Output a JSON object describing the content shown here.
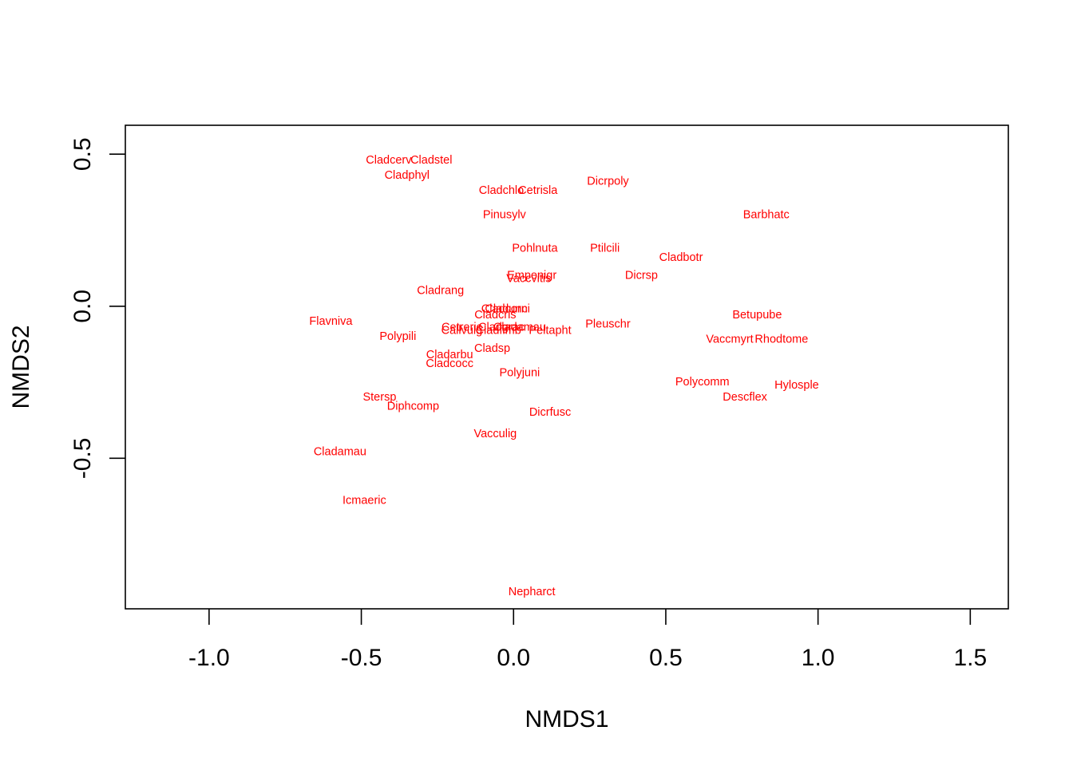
{
  "chart_data": {
    "type": "scatter",
    "title": "",
    "xlabel": "NMDS1",
    "ylabel": "NMDS2",
    "xlim": [
      -1.275,
      1.625
    ],
    "ylim": [
      -0.995,
      0.595
    ],
    "xticks": [
      -1.0,
      -0.5,
      0.0,
      0.5,
      1.0,
      1.5
    ],
    "xtick_labels": [
      "-1.0",
      "-0.5",
      "0.0",
      "0.5",
      "1.0",
      "1.5"
    ],
    "yticks": [
      -0.5,
      0.0,
      0.5
    ],
    "ytick_labels": [
      "-0.5",
      "0.0",
      "0.5"
    ],
    "grid": false,
    "point_style": "text-labels",
    "label_color": "#ff0000",
    "points": [
      {
        "label": "Cladcerv",
        "x": -0.41,
        "y": 0.48
      },
      {
        "label": "Cladstel",
        "x": -0.27,
        "y": 0.48
      },
      {
        "label": "Cladphyl",
        "x": -0.35,
        "y": 0.43
      },
      {
        "label": "Cladchlo",
        "x": -0.04,
        "y": 0.38
      },
      {
        "label": "Cetrisla",
        "x": 0.08,
        "y": 0.38
      },
      {
        "label": "Dicrpoly",
        "x": 0.31,
        "y": 0.41
      },
      {
        "label": "Pinusylv",
        "x": -0.03,
        "y": 0.3
      },
      {
        "label": "Barbhatc",
        "x": 0.83,
        "y": 0.3
      },
      {
        "label": "Pohlnuta",
        "x": 0.07,
        "y": 0.19
      },
      {
        "label": "Ptilcili",
        "x": 0.3,
        "y": 0.19
      },
      {
        "label": "Cladbotr",
        "x": 0.55,
        "y": 0.16
      },
      {
        "label": "Empenigr",
        "x": 0.06,
        "y": 0.1
      },
      {
        "label": "Vaccvitis",
        "x": 0.05,
        "y": 0.09
      },
      {
        "label": "Dicrsp",
        "x": 0.42,
        "y": 0.1
      },
      {
        "label": "Cladrang",
        "x": -0.24,
        "y": 0.05
      },
      {
        "label": "Cladunci",
        "x": -0.02,
        "y": -0.01
      },
      {
        "label": "Cladcorn",
        "x": -0.03,
        "y": -0.01
      },
      {
        "label": "Cladcris",
        "x": -0.06,
        "y": -0.03
      },
      {
        "label": "Flavniva",
        "x": -0.6,
        "y": -0.05
      },
      {
        "label": "Betupube",
        "x": 0.8,
        "y": -0.03
      },
      {
        "label": "Pleuschr",
        "x": 0.31,
        "y": -0.06
      },
      {
        "label": "Cetreric",
        "x": -0.17,
        "y": -0.07
      },
      {
        "label": "Cladgrac",
        "x": -0.04,
        "y": -0.07
      },
      {
        "label": "Cladamau",
        "x": 0.02,
        "y": -0.07
      },
      {
        "label": "Cladfimb",
        "x": -0.05,
        "y": -0.08
      },
      {
        "label": "Callvulg",
        "x": -0.17,
        "y": -0.08
      },
      {
        "label": "Peltapht",
        "x": 0.12,
        "y": -0.08
      },
      {
        "label": "Polypili",
        "x": -0.38,
        "y": -0.1
      },
      {
        "label": "Vaccmyrt",
        "x": 0.71,
        "y": -0.11
      },
      {
        "label": "Rhodtome",
        "x": 0.88,
        "y": -0.11
      },
      {
        "label": "Cladsp",
        "x": -0.07,
        "y": -0.14
      },
      {
        "label": "Cladarbu",
        "x": -0.21,
        "y": -0.16
      },
      {
        "label": "Cladcocc",
        "x": -0.21,
        "y": -0.19
      },
      {
        "label": "Polyjuni",
        "x": 0.02,
        "y": -0.22
      },
      {
        "label": "Polycomm",
        "x": 0.62,
        "y": -0.25
      },
      {
        "label": "Hylosple",
        "x": 0.93,
        "y": -0.26
      },
      {
        "label": "Descflex",
        "x": 0.76,
        "y": -0.3
      },
      {
        "label": "Stersp",
        "x": -0.44,
        "y": -0.3
      },
      {
        "label": "Diphcomp",
        "x": -0.33,
        "y": -0.33
      },
      {
        "label": "Dicrfusc",
        "x": 0.12,
        "y": -0.35
      },
      {
        "label": "Vacculig",
        "x": -0.06,
        "y": -0.42
      },
      {
        "label": "Cladamau",
        "x": -0.57,
        "y": -0.48
      },
      {
        "label": "Icmaeric",
        "x": -0.49,
        "y": -0.64
      },
      {
        "label": "Nepharct",
        "x": 0.06,
        "y": -0.94
      }
    ]
  }
}
